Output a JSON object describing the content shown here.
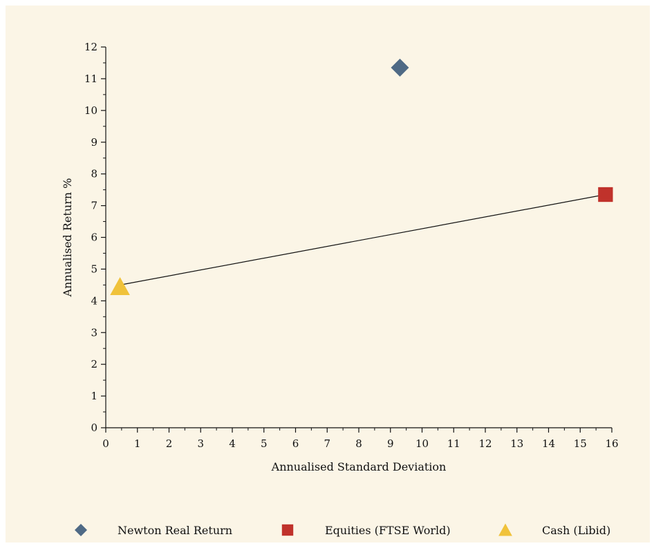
{
  "chart_data": {
    "type": "scatter",
    "title": "",
    "xlabel": "Annualised Standard Deviation",
    "ylabel": "Annualised Return %",
    "xlim": [
      0,
      16
    ],
    "ylim": [
      0,
      12
    ],
    "x_ticks": [
      0,
      1,
      2,
      3,
      4,
      5,
      6,
      7,
      8,
      9,
      10,
      11,
      12,
      13,
      14,
      15,
      16
    ],
    "y_ticks": [
      0,
      1,
      2,
      3,
      4,
      5,
      6,
      7,
      8,
      9,
      10,
      11,
      12
    ],
    "grid": false,
    "legend_position": "bottom",
    "series": [
      {
        "name": "Newton Real Return",
        "marker": "diamond",
        "color": "#4f6a85",
        "points": [
          {
            "x": 9.3,
            "y": 11.35
          }
        ]
      },
      {
        "name": "Equities (FTSE World)",
        "marker": "square",
        "color": "#c0322b",
        "points": [
          {
            "x": 15.8,
            "y": 7.35
          }
        ]
      },
      {
        "name": "Cash (Libid)",
        "marker": "triangle",
        "color": "#f0c23a",
        "points": [
          {
            "x": 0.45,
            "y": 4.45
          }
        ]
      }
    ],
    "lines": [
      {
        "from": {
          "x": 0.45,
          "y": 4.5
        },
        "to": {
          "x": 15.8,
          "y": 7.35
        },
        "color": "#111111"
      }
    ]
  }
}
